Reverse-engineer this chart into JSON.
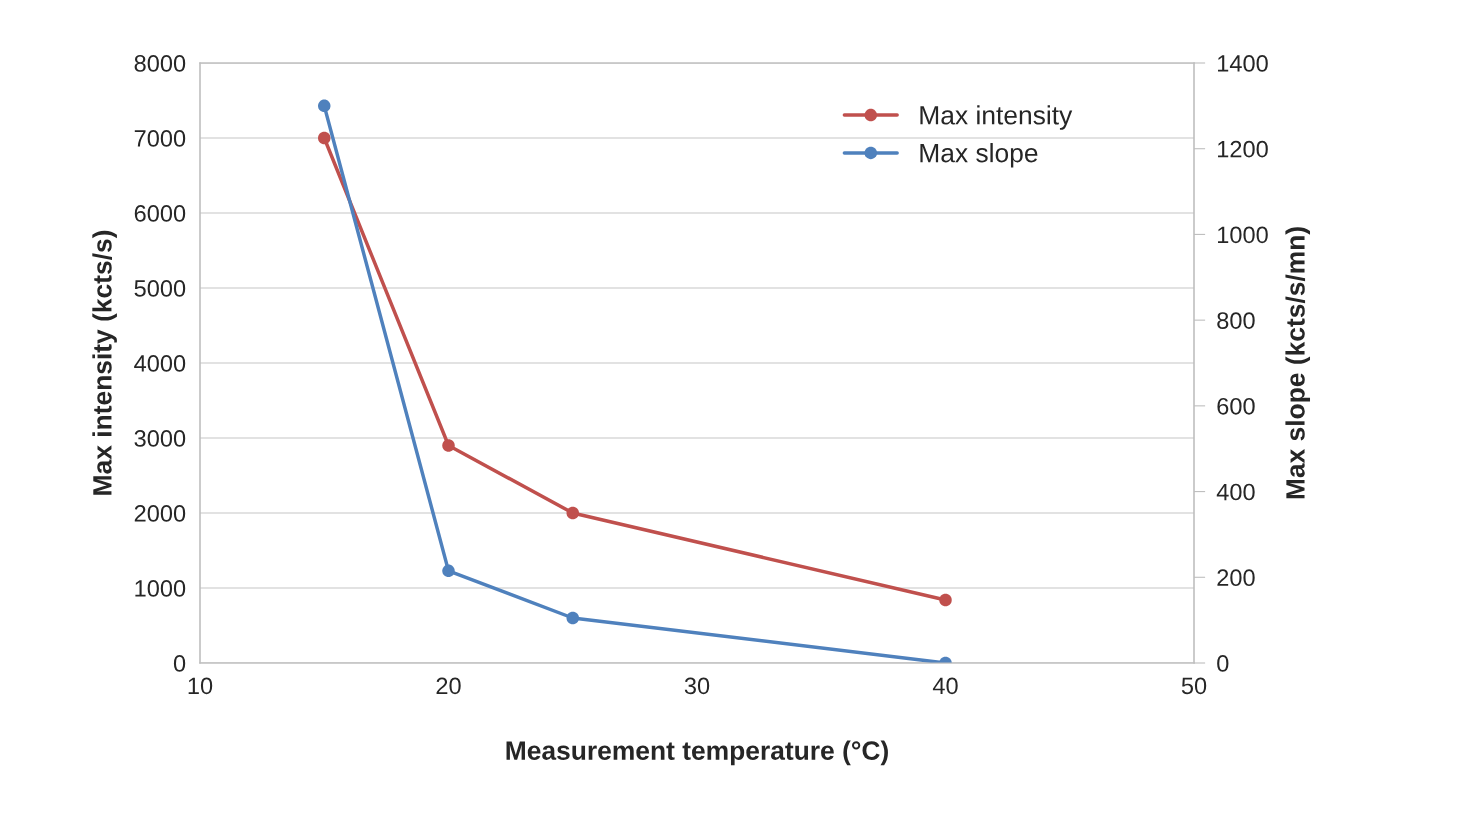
{
  "chart_data": {
    "type": "line",
    "xlabel": "Measurement temperature (°C)",
    "ylabel": "Max intensity (kcts/s)",
    "y2label": "Max slope (kcts/s/mn)",
    "x": [
      15,
      20,
      25,
      40
    ],
    "series": [
      {
        "name": "Max intensity",
        "color": "#c0504d",
        "values": [
          7000,
          2900,
          2000,
          840
        ]
      },
      {
        "name": "Max slope",
        "color": "#4f81bd",
        "values": [
          1300,
          215,
          105,
          0
        ],
        "axis": "y2"
      }
    ],
    "xlim": [
      10,
      50
    ],
    "xticks": [
      10,
      20,
      30,
      40,
      50
    ],
    "ylim": [
      0,
      8000
    ],
    "yticks": [
      0,
      1000,
      2000,
      3000,
      4000,
      5000,
      6000,
      7000,
      8000
    ],
    "y2lim": [
      0,
      1400
    ],
    "y2ticks": [
      0,
      200,
      400,
      600,
      800,
      1000,
      1200,
      1400
    ],
    "grid": "y",
    "legend": "top right",
    "marker": "circle",
    "line_style": "solid"
  }
}
